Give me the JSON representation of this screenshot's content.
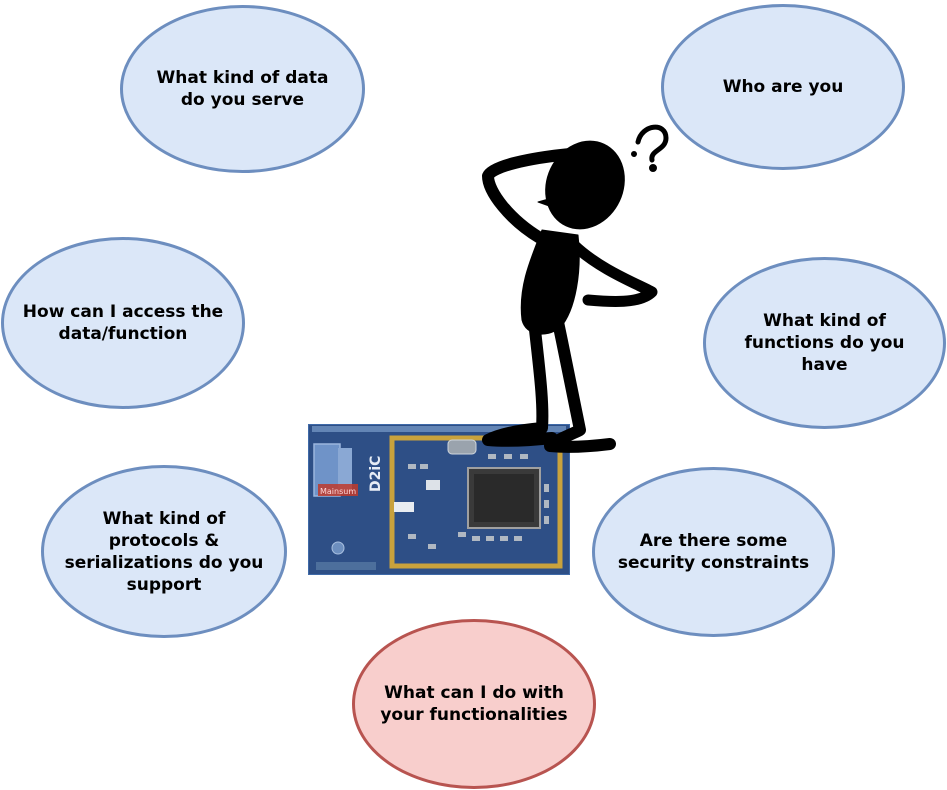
{
  "bubbles": {
    "data_kind": "What kind of data\ndo you serve",
    "who": "Who are you",
    "access": "How can I access the\ndata/function",
    "functions": "What kind of\nfunctions do you\nhave",
    "protocols": "What kind of\nprotocols &\nserializations do you\nsupport",
    "security": "Are there some\nsecurity constraints",
    "usage": "What can I do with\nyour functionalities"
  },
  "colors": {
    "bubble_fill": "#dbe7f8",
    "bubble_border": "#6d8ebf",
    "highlight_fill": "#f8cecc",
    "highlight_border": "#b85450",
    "board": "#2e4f86",
    "figure": "#000000"
  },
  "board_labels": {
    "brand": "Mainsum",
    "chip_id": "D2iC"
  }
}
